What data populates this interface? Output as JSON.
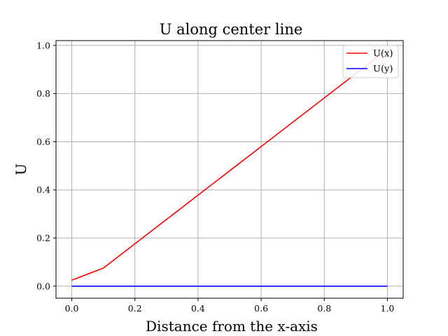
{
  "chart_data": {
    "type": "line",
    "title": "U along center line",
    "xlabel": "Distance from the x-axis",
    "ylabel": "U",
    "xlim": [
      -0.05,
      1.05
    ],
    "ylim": [
      -0.05,
      1.02
    ],
    "xticks": [
      0.0,
      0.2,
      0.4,
      0.6,
      0.8,
      1.0
    ],
    "xtick_labels": [
      "0.0",
      "0.2",
      "0.4",
      "0.6",
      "0.8",
      "1.0"
    ],
    "yticks": [
      0.0,
      0.2,
      0.4,
      0.6,
      0.8,
      1.0
    ],
    "ytick_labels": [
      "0.0",
      "0.2",
      "0.4",
      "0.6",
      "0.8",
      "1.0"
    ],
    "grid": true,
    "legend": "top-right",
    "series": [
      {
        "name": "U(x)",
        "color": "#ff0000",
        "x": [
          0.0,
          0.1,
          0.2,
          0.3,
          0.4,
          0.5,
          0.6,
          0.7,
          0.8,
          0.9,
          1.0
        ],
        "y": [
          0.025,
          0.075,
          0.176,
          0.277,
          0.378,
          0.479,
          0.58,
          0.681,
          0.782,
          0.883,
          0.984
        ]
      },
      {
        "name": "U(y)",
        "color": "#0000ff",
        "x": [
          0.0,
          0.1,
          0.2,
          0.3,
          0.4,
          0.5,
          0.6,
          0.7,
          0.8,
          0.9,
          1.0
        ],
        "y": [
          0.0,
          0.0,
          0.0,
          0.0,
          0.0,
          0.0,
          0.0,
          0.0,
          0.0,
          0.0,
          0.0
        ]
      }
    ]
  }
}
